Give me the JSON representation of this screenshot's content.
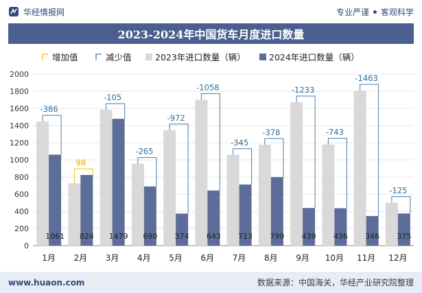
{
  "header": {
    "brand": "华经情报网",
    "tagline_left": "专业严谨",
    "tagline_right": "客观科学"
  },
  "colors": {
    "bar2023": "#d9d9d9",
    "bar2024": "#5b6d98",
    "increase": "#f2c100",
    "decrease": "#4a7aa8",
    "title_bg": "#4a5f8f"
  },
  "chart_data": {
    "type": "bar",
    "title": "2023-2024年中国货车月度进口数量",
    "categories": [
      "1月",
      "2月",
      "3月",
      "4月",
      "5月",
      "6月",
      "7月",
      "8月",
      "9月",
      "10月",
      "11月",
      "12月"
    ],
    "series": [
      {
        "name": "2023年进口数量（辆）",
        "values": [
          1447,
          726,
          1584,
          955,
          1346,
          1701,
          1058,
          1177,
          1672,
          1179,
          1809,
          500
        ]
      },
      {
        "name": "2024年进口数量（辆）",
        "values": [
          1061,
          824,
          1479,
          690,
          374,
          643,
          713,
          799,
          439,
          436,
          346,
          375
        ]
      }
    ],
    "differences": [
      -386,
      98,
      -105,
      -265,
      -972,
      -1058,
      -345,
      -378,
      -1233,
      -743,
      -1463,
      -125
    ],
    "difference_labels": [
      "-386",
      "98",
      "-105",
      "-265",
      "-972",
      "-1058",
      "-345",
      "-378",
      "-1233",
      "-743",
      "-1463",
      "-125"
    ],
    "bar2024_labels": [
      "1061",
      "824",
      "1479",
      "690",
      "374",
      "643",
      "713",
      "799",
      "439",
      "436",
      "346",
      "375"
    ],
    "legend": [
      "增加值",
      "减少值",
      "2023年进口数量（辆）",
      "2024年进口数量（辆）"
    ],
    "legend_position": "top",
    "yticks": [
      "0",
      "200",
      "400",
      "600",
      "800",
      "1000",
      "1200",
      "1400",
      "1600",
      "1800",
      "2000"
    ],
    "ylim": [
      0,
      2000
    ],
    "grid": true
  },
  "footer": {
    "website": "www.huaon.com",
    "source": "数据来源：中国海关，华经产业研究院整理"
  }
}
